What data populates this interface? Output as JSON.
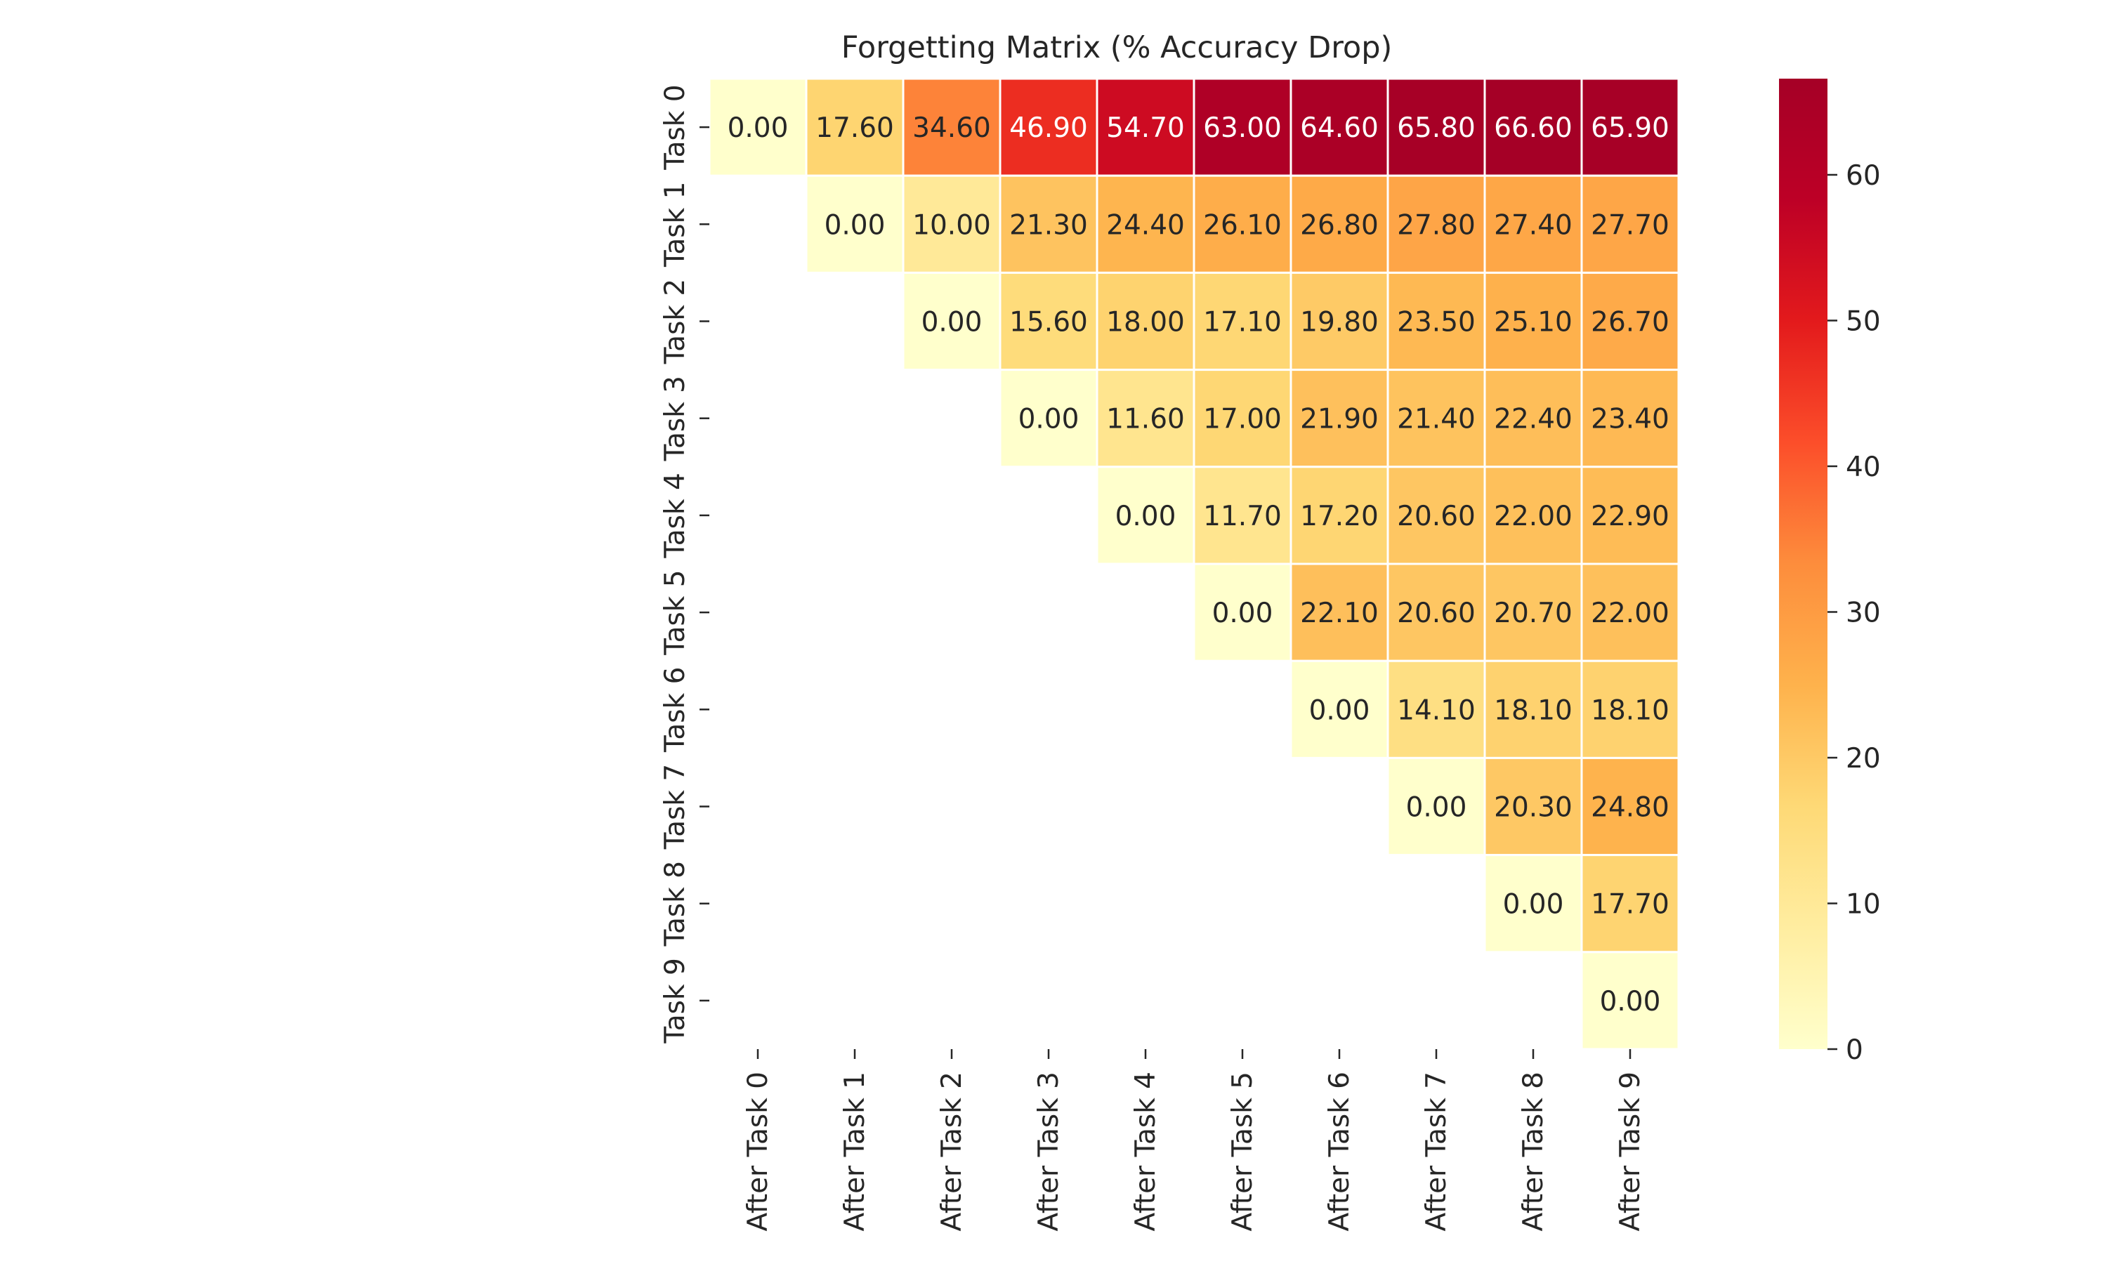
{
  "chart_data": {
    "type": "heatmap",
    "title": "Forgetting Matrix (% Accuracy Drop)",
    "xlabel": "",
    "ylabel": "",
    "row_labels": [
      "Task 0",
      "Task 1",
      "Task 2",
      "Task 3",
      "Task 4",
      "Task 5",
      "Task 6",
      "Task 7",
      "Task 8",
      "Task 9"
    ],
    "column_labels": [
      "After Task 0",
      "After Task 1",
      "After Task 2",
      "After Task 3",
      "After Task 4",
      "After Task 5",
      "After Task 6",
      "After Task 7",
      "After Task 8",
      "After Task 9"
    ],
    "values": [
      [
        0.0,
        17.6,
        34.6,
        46.9,
        54.7,
        63.0,
        64.6,
        65.8,
        66.6,
        65.9
      ],
      [
        null,
        0.0,
        10.0,
        21.3,
        24.4,
        26.1,
        26.8,
        27.8,
        27.4,
        27.7
      ],
      [
        null,
        null,
        0.0,
        15.6,
        18.0,
        17.1,
        19.8,
        23.5,
        25.1,
        26.7
      ],
      [
        null,
        null,
        null,
        0.0,
        11.6,
        17.0,
        21.9,
        21.4,
        22.4,
        23.4
      ],
      [
        null,
        null,
        null,
        null,
        0.0,
        11.7,
        17.2,
        20.6,
        22.0,
        22.9
      ],
      [
        null,
        null,
        null,
        null,
        null,
        0.0,
        22.1,
        20.6,
        20.7,
        22.0
      ],
      [
        null,
        null,
        null,
        null,
        null,
        null,
        0.0,
        14.1,
        18.1,
        18.1
      ],
      [
        null,
        null,
        null,
        null,
        null,
        null,
        null,
        0.0,
        20.3,
        24.8
      ],
      [
        null,
        null,
        null,
        null,
        null,
        null,
        null,
        null,
        0.0,
        17.7
      ],
      [
        null,
        null,
        null,
        null,
        null,
        null,
        null,
        null,
        null,
        0.0
      ]
    ],
    "value_format_decimals": 2,
    "colormap": "YlOrRd",
    "colorbar": {
      "range": [
        0,
        66.6
      ],
      "ticks": [
        0,
        10,
        20,
        30,
        40,
        50,
        60
      ],
      "stops": [
        "#ffffcc",
        "#ffeda0",
        "#fed976",
        "#feb24c",
        "#fd8d3c",
        "#fc4e2a",
        "#e31a1c",
        "#bd0026",
        "#a50026"
      ]
    },
    "cell_border_color": "#ffffff",
    "annotation_dark_text_color": "#262626",
    "annotation_light_text_color": "#ffffff"
  }
}
